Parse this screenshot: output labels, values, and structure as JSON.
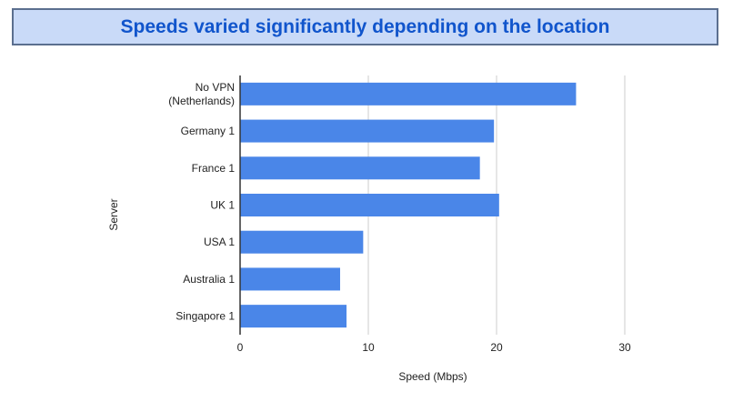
{
  "banner": {
    "title": "Speeds varied significantly depending on the location"
  },
  "colors": {
    "bar": "#4a86e8",
    "grid": "#cccccc",
    "axis": "#333333",
    "text": "#222222",
    "banner_bg": "#c9daf8",
    "banner_text": "#1155cc"
  },
  "chart_data": {
    "type": "bar",
    "orientation": "horizontal",
    "categories": [
      [
        "No VPN",
        "(Netherlands)"
      ],
      [
        "Germany 1"
      ],
      [
        "France 1"
      ],
      [
        "UK 1"
      ],
      [
        "USA 1"
      ],
      [
        "Australia 1"
      ],
      [
        "Singapore 1"
      ]
    ],
    "values": [
      26.2,
      19.8,
      18.7,
      20.2,
      9.6,
      7.8,
      8.3
    ],
    "xlabel": "Speed (Mbps)",
    "ylabel": "Server",
    "xlim": [
      0,
      36
    ],
    "xticks": [
      0,
      10,
      20,
      30
    ],
    "grid": true,
    "legend": "none"
  }
}
